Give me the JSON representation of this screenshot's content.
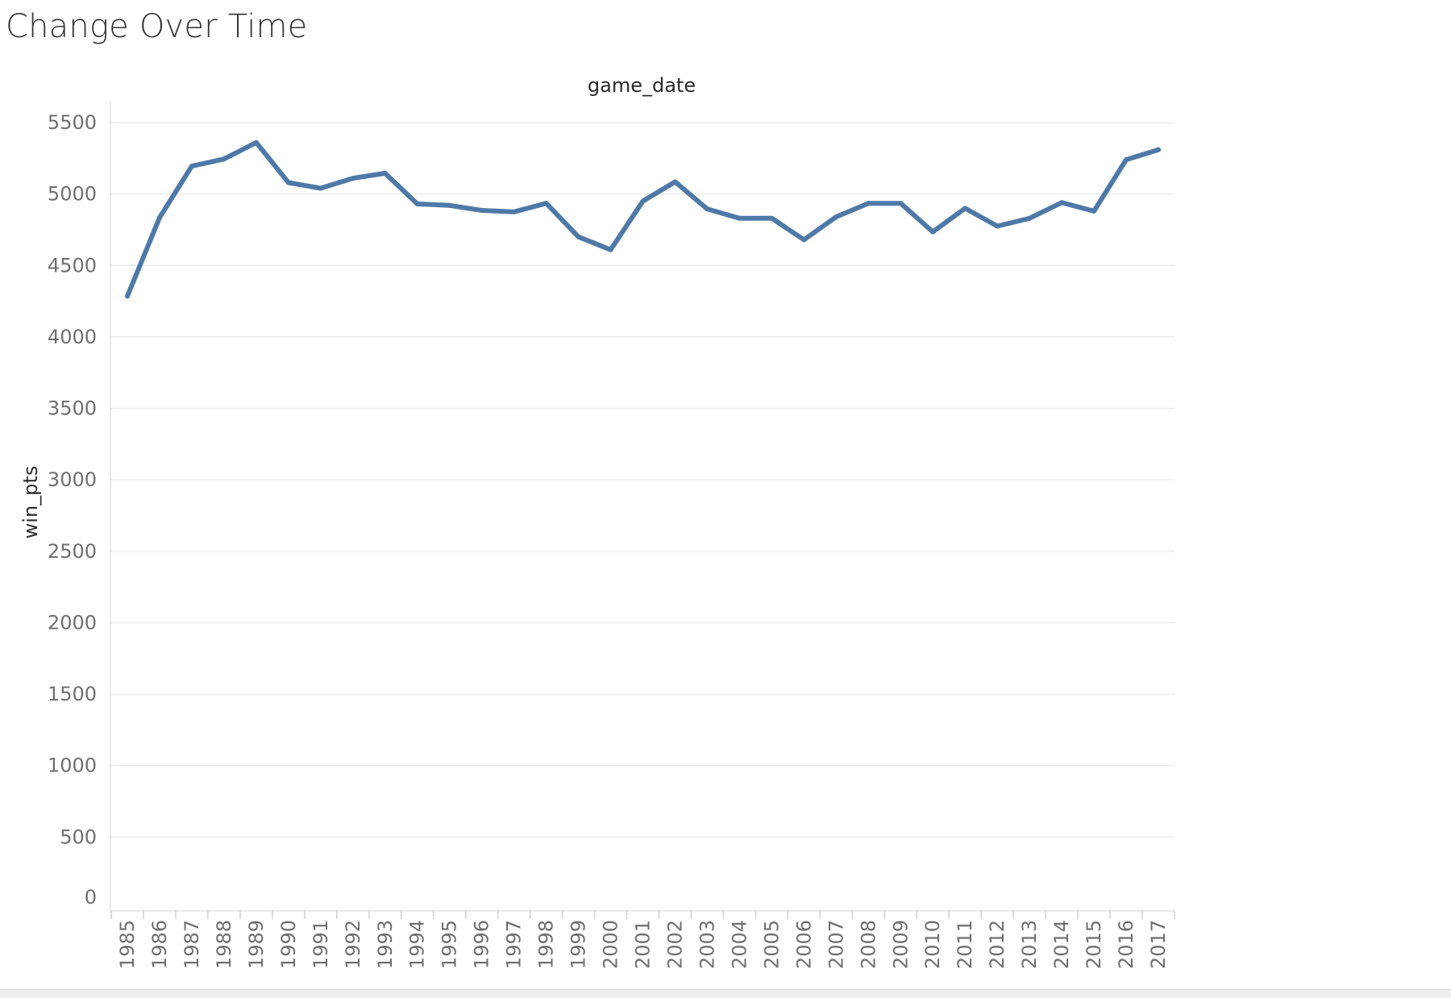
{
  "title": "Change Over Time",
  "colors": {
    "series": "#4e79a7",
    "grid": "#ececec"
  },
  "chart_data": {
    "type": "line",
    "column_header": "game_date",
    "xlabel": "game_date",
    "ylabel": "win_pts",
    "x": [
      "1985",
      "1986",
      "1987",
      "1988",
      "1989",
      "1990",
      "1991",
      "1992",
      "1993",
      "1994",
      "1995",
      "1996",
      "1997",
      "1998",
      "1999",
      "2000",
      "2001",
      "2002",
      "2003",
      "2004",
      "2005",
      "2006",
      "2007",
      "2008",
      "2009",
      "2010",
      "2011",
      "2012",
      "2013",
      "2014",
      "2015",
      "2016",
      "2017"
    ],
    "series": [
      {
        "values": [
          4285,
          4835,
          5195,
          5245,
          5360,
          5080,
          5040,
          5110,
          5145,
          4930,
          4920,
          4885,
          4875,
          4935,
          4700,
          4610,
          4950,
          5085,
          4895,
          4830,
          4830,
          4680,
          4840,
          4935,
          4935,
          4735,
          4900,
          4775,
          4830,
          4940,
          4880,
          5240,
          5310
        ]
      }
    ],
    "ylim": [
      0,
      5650
    ],
    "yticks": [
      0,
      500,
      1000,
      1500,
      2000,
      2500,
      3000,
      3500,
      4000,
      4500,
      5000,
      5500
    ],
    "grid": true,
    "legend": "none"
  }
}
